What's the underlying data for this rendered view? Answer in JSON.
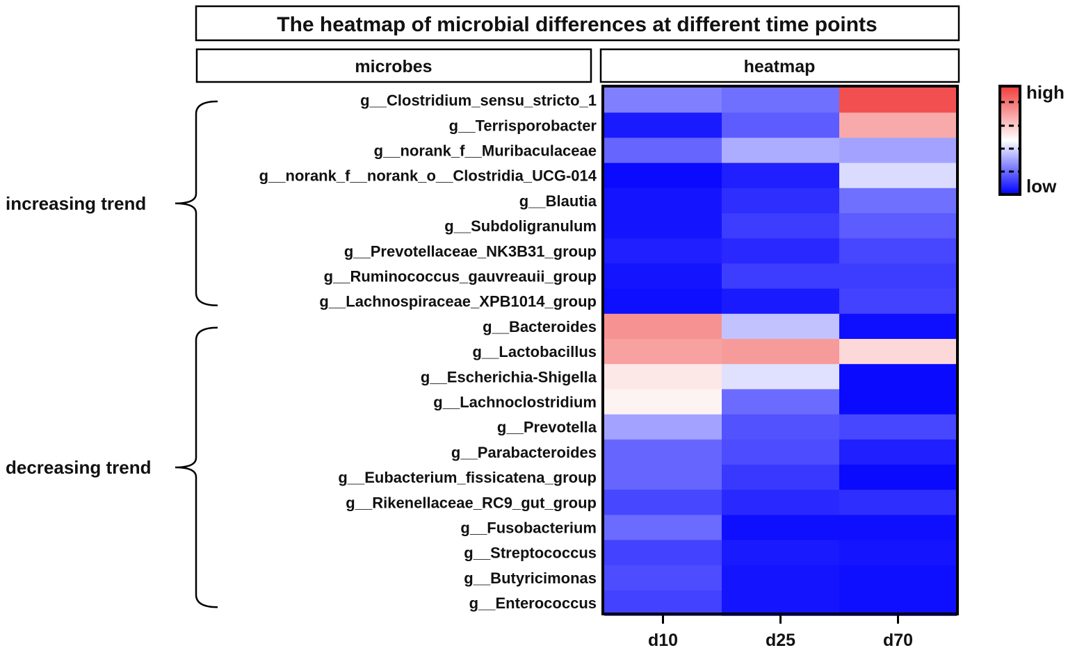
{
  "chart_data": {
    "type": "heatmap",
    "title": "The heatmap of microbial differences at different time points",
    "header_left": "microbes",
    "header_right": "heatmap",
    "columns": [
      "d10",
      "d25",
      "d70"
    ],
    "rows": [
      "g__Clostridium_sensu_stricto_1",
      "g__Terrisporobacter",
      "g__norank_f__Muribaculaceae",
      "g__norank_f__norank_o__Clostridia_UCG-014",
      "g__Blautia",
      "g__Subdoligranulum",
      "g__Prevotellaceae_NK3B31_group",
      "g__Ruminococcus_gauvreauii_group",
      "g__Lachnospiraceae_XPB1014_group",
      "g__Bacteroides",
      "g__Lactobacillus",
      "g__Escherichia-Shigella",
      "g__Lachnoclostridium",
      "g__Prevotella",
      "g__Parabacteroides",
      "g__Eubacterium_fissicatena_group",
      "g__Rikenellaceae_RC9_gut_group",
      "g__Fusobacterium",
      "g__Streptococcus",
      "g__Butyricimonas",
      "g__Enterococcus"
    ],
    "values": [
      [
        0.25,
        0.22,
        0.95
      ],
      [
        0.05,
        0.18,
        0.72
      ],
      [
        0.2,
        0.34,
        0.32
      ],
      [
        0.02,
        0.06,
        0.43
      ],
      [
        0.04,
        0.09,
        0.22
      ],
      [
        0.04,
        0.12,
        0.18
      ],
      [
        0.06,
        0.08,
        0.14
      ],
      [
        0.04,
        0.12,
        0.12
      ],
      [
        0.03,
        0.05,
        0.13
      ],
      [
        0.78,
        0.38,
        0.03
      ],
      [
        0.74,
        0.76,
        0.6
      ],
      [
        0.56,
        0.44,
        0.02
      ],
      [
        0.53,
        0.21,
        0.02
      ],
      [
        0.32,
        0.16,
        0.14
      ],
      [
        0.2,
        0.15,
        0.06
      ],
      [
        0.2,
        0.11,
        0.02
      ],
      [
        0.14,
        0.08,
        0.09
      ],
      [
        0.21,
        0.03,
        0.03
      ],
      [
        0.13,
        0.05,
        0.04
      ],
      [
        0.15,
        0.04,
        0.03
      ],
      [
        0.13,
        0.04,
        0.03
      ]
    ],
    "groups": [
      {
        "label": "increasing trend",
        "start": 0,
        "end": 8
      },
      {
        "label": "decreasing trend",
        "start": 9,
        "end": 20
      }
    ],
    "colorbar": {
      "high_label": "high",
      "low_label": "low",
      "high_color": "#f03c3c",
      "mid_color": "#ffffff",
      "low_color": "#0000ff"
    }
  }
}
